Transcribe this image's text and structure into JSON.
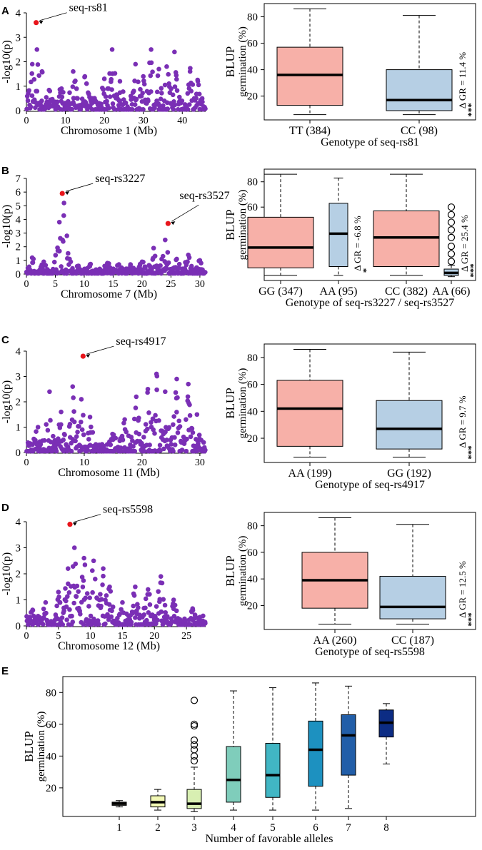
{
  "colors": {
    "manhattan_point": "#7a2fb5",
    "peak_point": "#e8151b",
    "box_favorable": "#f7b0a8",
    "box_unfavorable": "#b6cfe4",
    "allele_palette": [
      "#ffffe0",
      "#f3f9b6",
      "#d8efb2",
      "#7fcdbb",
      "#41b6c4",
      "#1d91c0",
      "#225ea8",
      "#0c2c84"
    ]
  },
  "chart_data": [
    {
      "panel": "A",
      "type": "scatter",
      "subtype": "manhattan",
      "xlabel": "Chromosome 1 (Mb)",
      "ylabel": "-log10(p)",
      "xlim": [
        0,
        46
      ],
      "ylim": [
        0,
        4
      ],
      "xticks": [
        0,
        10,
        20,
        30,
        40
      ],
      "yticks": [
        0,
        1,
        2,
        3,
        4
      ],
      "peaks": [
        {
          "label": "seq-rs81",
          "x": 2.5,
          "y": 3.6
        }
      ],
      "clusters": [
        {
          "x": 1.5,
          "y": 1.9
        },
        {
          "x": 2.7,
          "y": 2.5
        },
        {
          "x": 4,
          "y": 1.6
        },
        {
          "x": 6,
          "y": 0.8
        },
        {
          "x": 9,
          "y": 0.9
        },
        {
          "x": 12,
          "y": 1.6
        },
        {
          "x": 15,
          "y": 1.4
        },
        {
          "x": 17,
          "y": 0.5
        },
        {
          "x": 20,
          "y": 1.3
        },
        {
          "x": 22,
          "y": 2.5
        },
        {
          "x": 24,
          "y": 1.2
        },
        {
          "x": 28,
          "y": 1.9
        },
        {
          "x": 30,
          "y": 1.4
        },
        {
          "x": 32,
          "y": 2.5
        },
        {
          "x": 34,
          "y": 1.7
        },
        {
          "x": 36,
          "y": 1.8
        },
        {
          "x": 38,
          "y": 2.4
        },
        {
          "x": 42,
          "y": 1.6
        },
        {
          "x": 44,
          "y": 1.2
        }
      ]
    },
    {
      "panel": "A",
      "type": "box",
      "ylabel_top": "BLUP",
      "ylabel": "germination (%)",
      "xlabel": "Genotype of seq-rs81",
      "ylim": [
        2,
        90
      ],
      "yticks": [
        20,
        40,
        60,
        80
      ],
      "groups": [
        {
          "label": "TT (384)",
          "min": 6,
          "q1": 13,
          "median": 36,
          "q3": 57,
          "max": 86,
          "fill": "box_favorable",
          "outliers": []
        },
        {
          "label": "CC (98)",
          "min": 6,
          "q1": 9,
          "median": 17,
          "q3": 40,
          "max": 81,
          "fill": "box_unfavorable",
          "outliers": []
        }
      ],
      "annotations": [
        {
          "text": "Δ GR = 11.4 %",
          "stars": "***"
        }
      ]
    },
    {
      "panel": "B",
      "type": "scatter",
      "subtype": "manhattan",
      "xlabel": "Chromosome 7 (Mb)",
      "ylabel": "-log10(p)",
      "xlim": [
        0,
        31
      ],
      "ylim": [
        0,
        7
      ],
      "xticks": [
        0,
        5,
        10,
        15,
        20,
        25,
        30
      ],
      "yticks": [
        0,
        1,
        2,
        3,
        4,
        5,
        6,
        7
      ],
      "peaks": [
        {
          "label": "seq-rs3227",
          "x": 6.2,
          "y": 5.9
        },
        {
          "label": "seq-rs3527",
          "x": 24.5,
          "y": 3.7
        }
      ],
      "clusters": [
        {
          "x": 1,
          "y": 1.2
        },
        {
          "x": 3,
          "y": 0.9
        },
        {
          "x": 5.7,
          "y": 3.8
        },
        {
          "x": 6.5,
          "y": 5.2
        },
        {
          "x": 7,
          "y": 2.8
        },
        {
          "x": 9,
          "y": 0.6
        },
        {
          "x": 11,
          "y": 0.7
        },
        {
          "x": 14,
          "y": 0.8
        },
        {
          "x": 16,
          "y": 0.7
        },
        {
          "x": 18,
          "y": 0.7
        },
        {
          "x": 20,
          "y": 0.9
        },
        {
          "x": 22,
          "y": 1.9
        },
        {
          "x": 24,
          "y": 2.5
        },
        {
          "x": 26,
          "y": 1.1
        },
        {
          "x": 28,
          "y": 1.4
        },
        {
          "x": 30,
          "y": 1.0
        }
      ]
    },
    {
      "panel": "B",
      "type": "box",
      "ylabel_top": "BLUP",
      "ylabel": "germination (%)",
      "xlabel": "Genotype of seq-rs3227 / seq-rs3527",
      "ylim": [
        2,
        90
      ],
      "yticks": [
        20,
        40,
        60,
        80
      ],
      "groups": [
        {
          "label": "GG (347)",
          "min": 6,
          "q1": 12,
          "median": 28,
          "q3": 52,
          "max": 86,
          "fill": "box_favorable",
          "outliers": []
        },
        {
          "label": "AA (95)",
          "min": 6,
          "q1": 13,
          "median": 39,
          "q3": 63,
          "max": 83,
          "fill": "box_unfavorable",
          "outliers": []
        },
        {
          "label": "CC (382)",
          "min": 6,
          "q1": 13,
          "median": 36,
          "q3": 57,
          "max": 86,
          "fill": "box_favorable",
          "outliers": []
        },
        {
          "label": "AA (66)",
          "min": 5,
          "q1": 6,
          "median": 8,
          "q3": 11,
          "max": 14,
          "fill": "box_unfavorable",
          "outliers": [
            17,
            23,
            29,
            36,
            42,
            48,
            54,
            60
          ]
        }
      ],
      "annotations": [
        {
          "text": "Δ GR = -6.8 %",
          "stars": "*"
        },
        {
          "text": "Δ GR = 25.4 %",
          "stars": "***"
        }
      ]
    },
    {
      "panel": "C",
      "type": "scatter",
      "subtype": "manhattan",
      "xlabel": "Chromosome 11 (Mb)",
      "ylabel": "-log10(p)",
      "xlim": [
        0,
        31
      ],
      "ylim": [
        0,
        4
      ],
      "xticks": [
        0,
        10,
        20,
        30
      ],
      "yticks": [
        0,
        1,
        2,
        3,
        4
      ],
      "peaks": [
        {
          "label": "seq-rs4917",
          "x": 9.8,
          "y": 3.8
        }
      ],
      "clusters": [
        {
          "x": 2,
          "y": 1.0
        },
        {
          "x": 4,
          "y": 2.4
        },
        {
          "x": 6,
          "y": 1.6
        },
        {
          "x": 8,
          "y": 2.6
        },
        {
          "x": 9.5,
          "y": 2.1
        },
        {
          "x": 11,
          "y": 1.4
        },
        {
          "x": 15,
          "y": 0.6
        },
        {
          "x": 17,
          "y": 1.3
        },
        {
          "x": 19,
          "y": 2.2
        },
        {
          "x": 21,
          "y": 2.5
        },
        {
          "x": 22.5,
          "y": 3.1
        },
        {
          "x": 24,
          "y": 2.4
        },
        {
          "x": 26,
          "y": 2.9
        },
        {
          "x": 28,
          "y": 2.7
        },
        {
          "x": 29.5,
          "y": 1.5
        }
      ]
    },
    {
      "panel": "C",
      "type": "box",
      "ylabel_top": "BLUP",
      "ylabel": "germination (%)",
      "xlabel": "Genotype of seq-rs4917",
      "ylim": [
        2,
        90
      ],
      "yticks": [
        20,
        40,
        60,
        80
      ],
      "groups": [
        {
          "label": "AA (199)",
          "min": 6,
          "q1": 14,
          "median": 42,
          "q3": 63,
          "max": 86,
          "fill": "box_favorable",
          "outliers": []
        },
        {
          "label": "GG (192)",
          "min": 6,
          "q1": 12,
          "median": 27,
          "q3": 48,
          "max": 84,
          "fill": "box_unfavorable",
          "outliers": []
        }
      ],
      "annotations": [
        {
          "text": "Δ GR = 9.7 %",
          "stars": "***"
        }
      ]
    },
    {
      "panel": "D",
      "type": "scatter",
      "subtype": "manhattan",
      "xlabel": "Chromosome 12 (Mb)",
      "ylabel": "-log10(p)",
      "xlim": [
        0,
        28
      ],
      "ylim": [
        0,
        4
      ],
      "xticks": [
        0,
        5,
        10,
        15,
        20,
        25
      ],
      "yticks": [
        0,
        1,
        2,
        3,
        4
      ],
      "peaks": [
        {
          "label": "seq-rs5598",
          "x": 6.8,
          "y": 3.9
        }
      ],
      "clusters": [
        {
          "x": 1,
          "y": 0.6
        },
        {
          "x": 3,
          "y": 0.9
        },
        {
          "x": 5,
          "y": 1.3
        },
        {
          "x": 6.5,
          "y": 2.2
        },
        {
          "x": 7.5,
          "y": 3.0
        },
        {
          "x": 9,
          "y": 2.6
        },
        {
          "x": 10.5,
          "y": 2.5
        },
        {
          "x": 12,
          "y": 2.2
        },
        {
          "x": 13,
          "y": 1.5
        },
        {
          "x": 15,
          "y": 0.9
        },
        {
          "x": 17,
          "y": 1.5
        },
        {
          "x": 19,
          "y": 1.4
        },
        {
          "x": 21,
          "y": 1.9
        },
        {
          "x": 23,
          "y": 1.0
        },
        {
          "x": 26,
          "y": 0.6
        }
      ]
    },
    {
      "panel": "D",
      "type": "box",
      "ylabel_top": "BLUP",
      "ylabel": "germination (%)",
      "xlabel": "Genotype of seq-rs5598",
      "ylim": [
        2,
        90
      ],
      "yticks": [
        20,
        40,
        60,
        80
      ],
      "groups": [
        {
          "label": "AA (260)",
          "min": 6,
          "q1": 18,
          "median": 39,
          "q3": 60,
          "max": 86,
          "fill": "box_favorable",
          "outliers": []
        },
        {
          "label": "CC (187)",
          "min": 6,
          "q1": 10,
          "median": 19,
          "q3": 42,
          "max": 81,
          "fill": "box_unfavorable",
          "outliers": []
        }
      ],
      "annotations": [
        {
          "text": "Δ GR = 12.5 %",
          "stars": "***"
        }
      ]
    },
    {
      "panel": "E",
      "type": "box",
      "ylabel_top": "BLUP",
      "ylabel": "germination (%)",
      "xlabel": "Number of favorable alleles",
      "ylim": [
        2,
        90
      ],
      "yticks": [
        20,
        40,
        60,
        80
      ],
      "groups": [
        {
          "label": "1",
          "min": 8,
          "q1": 9,
          "median": 10,
          "q3": 11,
          "max": 12,
          "color_index": 0,
          "outliers": []
        },
        {
          "label": "2",
          "min": 6,
          "q1": 8,
          "median": 11,
          "q3": 15,
          "max": 19,
          "color_index": 1,
          "outliers": []
        },
        {
          "label": "3",
          "min": 5,
          "q1": 7,
          "median": 10,
          "q3": 19,
          "max": 33,
          "color_index": 2,
          "outliers": [
            37,
            40,
            44,
            47,
            50,
            59,
            60,
            75
          ]
        },
        {
          "label": "4",
          "min": 6,
          "q1": 11,
          "median": 25,
          "q3": 46,
          "max": 81,
          "color_index": 3,
          "outliers": []
        },
        {
          "label": "5",
          "min": 6,
          "q1": 14,
          "median": 28,
          "q3": 48,
          "max": 83,
          "color_index": 4,
          "outliers": []
        },
        {
          "label": "6",
          "min": 6,
          "q1": 21,
          "median": 44,
          "q3": 62,
          "max": 86,
          "color_index": 5,
          "outliers": []
        },
        {
          "label": "7",
          "min": 7,
          "q1": 28,
          "median": 53,
          "q3": 66,
          "max": 84,
          "color_index": 6,
          "outliers": []
        },
        {
          "label": "8",
          "min": 35,
          "q1": 52,
          "median": 61,
          "q3": 69,
          "max": 73,
          "color_index": 7,
          "outliers": []
        }
      ]
    }
  ]
}
